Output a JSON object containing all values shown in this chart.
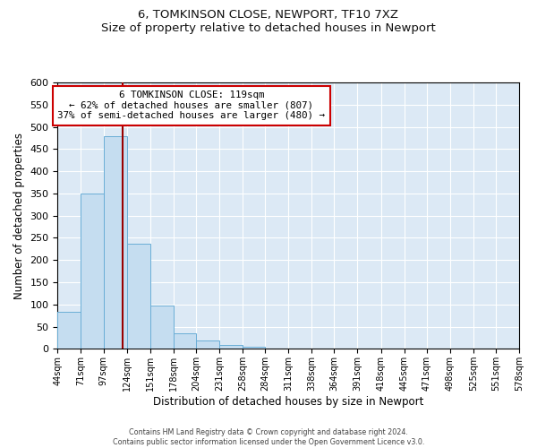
{
  "title": "6, TOMKINSON CLOSE, NEWPORT, TF10 7XZ",
  "subtitle": "Size of property relative to detached houses in Newport",
  "xlabel": "Distribution of detached houses by size in Newport",
  "ylabel": "Number of detached properties",
  "bar_color": "#c5ddf0",
  "bar_edge_color": "#6aaed6",
  "background_color": "#dce9f5",
  "grid_color": "#ffffff",
  "vline_x": 119,
  "vline_color": "#990000",
  "bin_edges": [
    44,
    71,
    97,
    124,
    151,
    178,
    204,
    231,
    258,
    284,
    311,
    338,
    364,
    391,
    418,
    445,
    471,
    498,
    525,
    551,
    578
  ],
  "bar_heights": [
    83,
    350,
    478,
    237,
    97,
    35,
    18,
    8,
    5,
    0,
    0,
    0,
    0,
    0,
    0,
    1,
    0,
    0,
    0,
    1
  ],
  "tick_labels": [
    "44sqm",
    "71sqm",
    "97sqm",
    "124sqm",
    "151sqm",
    "178sqm",
    "204sqm",
    "231sqm",
    "258sqm",
    "284sqm",
    "311sqm",
    "338sqm",
    "364sqm",
    "391sqm",
    "418sqm",
    "445sqm",
    "471sqm",
    "498sqm",
    "525sqm",
    "551sqm",
    "578sqm"
  ],
  "ylim": [
    0,
    600
  ],
  "yticks": [
    0,
    50,
    100,
    150,
    200,
    250,
    300,
    350,
    400,
    450,
    500,
    550,
    600
  ],
  "annotation_title": "6 TOMKINSON CLOSE: 119sqm",
  "annotation_line1": "← 62% of detached houses are smaller (807)",
  "annotation_line2": "37% of semi-detached houses are larger (480) →",
  "annotation_box_color": "#ffffff",
  "annotation_box_edge": "#cc0000",
  "footer_line1": "Contains HM Land Registry data © Crown copyright and database right 2024.",
  "footer_line2": "Contains public sector information licensed under the Open Government Licence v3.0."
}
